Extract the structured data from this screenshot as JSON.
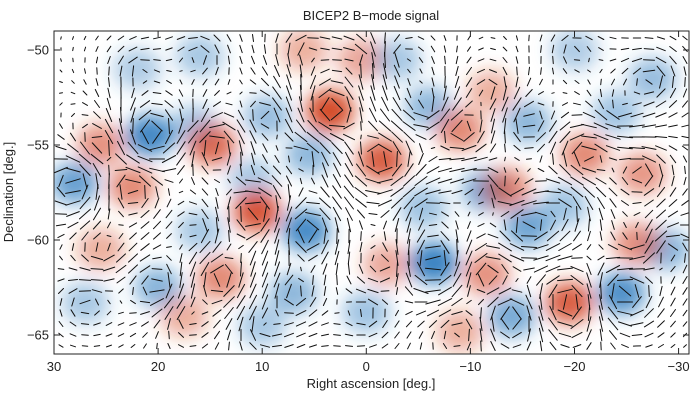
{
  "chart_data": {
    "type": "heatmap",
    "title": "BICEP2 B−mode signal",
    "xlabel": "Right ascension [deg.]",
    "ylabel": "Declination [deg.]",
    "xlim": [
      30,
      -31
    ],
    "ylim": [
      -66,
      -49
    ],
    "x_ticks": [
      30,
      20,
      10,
      0,
      -10,
      -20,
      -30
    ],
    "x_tick_labels": [
      "30",
      "20",
      "10",
      "0",
      "−10",
      "−20",
      "−30"
    ],
    "y_ticks": [
      -50,
      -55,
      -60,
      -65
    ],
    "y_tick_labels": [
      "−50",
      "−55",
      "−60",
      "−65"
    ],
    "colors": {
      "positive": "#d2401f",
      "negative": "#2f7cbf",
      "vector": "#111111",
      "frame": "#222222"
    },
    "features": [
      {
        "ra": 3.5,
        "dec": -53.2,
        "v": 1.0
      },
      {
        "ra": 28,
        "dec": -57.0,
        "v": -0.7
      },
      {
        "ra": 25.5,
        "dec": -55.0,
        "v": 0.5
      },
      {
        "ra": 22.5,
        "dec": -57.2,
        "v": 0.55
      },
      {
        "ra": 20.8,
        "dec": -54.5,
        "v": -0.95
      },
      {
        "ra": 16.5,
        "dec": -54.0,
        "v": -0.35
      },
      {
        "ra": 14.8,
        "dec": -55.0,
        "v": 0.75
      },
      {
        "ra": 11,
        "dec": -56.8,
        "v": -0.3
      },
      {
        "ra": 10.5,
        "dec": -58.5,
        "v": 0.9
      },
      {
        "ra": 9.5,
        "dec": -53.5,
        "v": -0.4
      },
      {
        "ra": 5.5,
        "dec": -55.5,
        "v": -0.45
      },
      {
        "ra": 5.8,
        "dec": -59.5,
        "v": -0.9
      },
      {
        "ra": 0.5,
        "dec": -50.5,
        "v": 0.35
      },
      {
        "ra": 6,
        "dec": -50.0,
        "v": 0.3
      },
      {
        "ra": 16,
        "dec": -50.3,
        "v": -0.3
      },
      {
        "ra": -1.5,
        "dec": -55.8,
        "v": 0.85
      },
      {
        "ra": -5.5,
        "dec": -58.3,
        "v": -0.35
      },
      {
        "ra": -6,
        "dec": -53.0,
        "v": -0.45
      },
      {
        "ra": -9,
        "dec": -54.2,
        "v": 0.55
      },
      {
        "ra": -12,
        "dec": -52.2,
        "v": 0.3
      },
      {
        "ra": -11.5,
        "dec": -57.4,
        "v": -0.6
      },
      {
        "ra": -13.5,
        "dec": -57.3,
        "v": 0.55
      },
      {
        "ra": -15.5,
        "dec": -53.8,
        "v": -0.45
      },
      {
        "ra": -15.5,
        "dec": -59.3,
        "v": -0.65
      },
      {
        "ra": -19,
        "dec": -58.2,
        "v": -0.35
      },
      {
        "ra": -21,
        "dec": -55.5,
        "v": 0.55
      },
      {
        "ra": -24,
        "dec": -53.3,
        "v": -0.35
      },
      {
        "ra": -26.5,
        "dec": -56.5,
        "v": 0.45
      },
      {
        "ra": -27.5,
        "dec": -51.5,
        "v": -0.4
      },
      {
        "ra": -28.8,
        "dec": -60.5,
        "v": -0.5
      },
      {
        "ra": -26,
        "dec": -60.2,
        "v": 0.5
      },
      {
        "ra": -6.5,
        "dec": -61.2,
        "v": -1.0
      },
      {
        "ra": -11.5,
        "dec": -61.8,
        "v": 0.5
      },
      {
        "ra": -2,
        "dec": -61.3,
        "v": 0.35
      },
      {
        "ra": -14,
        "dec": -64.0,
        "v": -0.6
      },
      {
        "ra": -19.5,
        "dec": -63.3,
        "v": 0.85
      },
      {
        "ra": -24.5,
        "dec": -62.8,
        "v": -0.85
      },
      {
        "ra": 14,
        "dec": -62.0,
        "v": 0.55
      },
      {
        "ra": 20,
        "dec": -62.5,
        "v": -0.5
      },
      {
        "ra": 27,
        "dec": -63.3,
        "v": -0.3
      },
      {
        "ra": 25.5,
        "dec": -60.5,
        "v": 0.3
      },
      {
        "ra": 16,
        "dec": -59.5,
        "v": -0.3
      },
      {
        "ra": 7,
        "dec": -62.8,
        "v": -0.45
      },
      {
        "ra": 0,
        "dec": -63.8,
        "v": -0.35
      },
      {
        "ra": 10,
        "dec": -64.5,
        "v": -0.3
      },
      {
        "ra": 17.5,
        "dec": -64.0,
        "v": 0.3
      },
      {
        "ra": -9,
        "dec": -64.8,
        "v": 0.3
      },
      {
        "ra": 22,
        "dec": -51.0,
        "v": -0.25
      },
      {
        "ra": -20,
        "dec": -50.0,
        "v": -0.25
      },
      {
        "ra": -3,
        "dec": -50.5,
        "v": -0.3
      }
    ]
  }
}
